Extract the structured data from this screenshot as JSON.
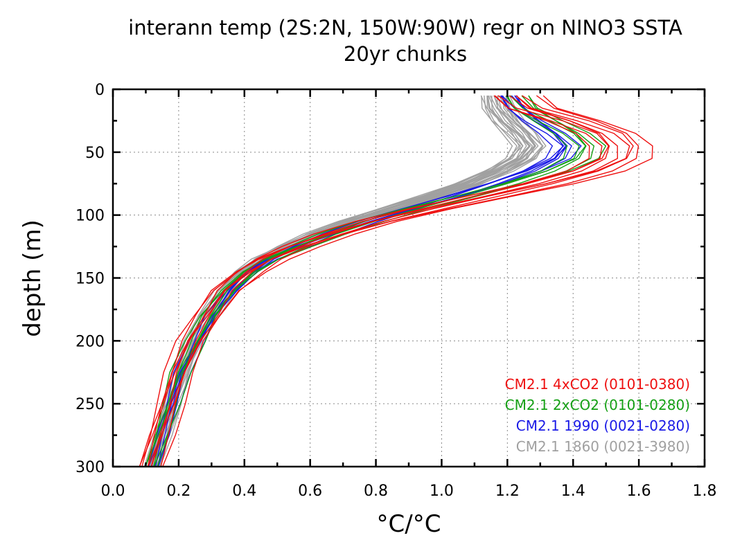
{
  "chart_data": {
    "type": "line",
    "title": "interann temp (2S:2N, 150W:90W) regr on NINO3 SSTA",
    "subtitle": "20yr chunks",
    "xlabel": "°C/°C",
    "ylabel": "depth (m)",
    "xlim": [
      0.0,
      1.8
    ],
    "ylim": [
      300,
      0
    ],
    "y_inverted": true,
    "grid": true,
    "xticks": [
      "0.0",
      "0.2",
      "0.4",
      "0.6",
      "0.8",
      "1.0",
      "1.2",
      "1.4",
      "1.6",
      "1.8"
    ],
    "yticks": [
      "0",
      "50",
      "100",
      "150",
      "200",
      "250",
      "300"
    ],
    "legend_position": "bottom-right",
    "depths": [
      5,
      15,
      25,
      35,
      45,
      55,
      65,
      75,
      85,
      95,
      105,
      115,
      125,
      135,
      145,
      160,
      180,
      200,
      225,
      250,
      275,
      300
    ],
    "groups": [
      {
        "legend": "CM2.1 1860 (0021-3980)",
        "color": "#a0a0a0",
        "profile": [
          1.16,
          1.17,
          1.2,
          1.24,
          1.27,
          1.24,
          1.17,
          1.08,
          0.97,
          0.85,
          0.73,
          0.62,
          0.53,
          0.45,
          0.4,
          0.34,
          0.29,
          0.25,
          0.21,
          0.18,
          0.15,
          0.12
        ],
        "offsets": [
          -0.05,
          -0.042,
          -0.034,
          -0.027,
          -0.02,
          -0.013,
          -0.006,
          0.0,
          0.006,
          0.013,
          0.02,
          0.027,
          0.034,
          0.042,
          0.05,
          -0.038,
          -0.016,
          0.009,
          0.031,
          0.044
        ]
      },
      {
        "legend": "CM2.1 1990 (0021-0280)",
        "color": "#1a1ae6",
        "profile": [
          1.2,
          1.23,
          1.28,
          1.34,
          1.38,
          1.35,
          1.27,
          1.16,
          1.04,
          0.91,
          0.78,
          0.67,
          0.57,
          0.48,
          0.42,
          0.36,
          0.3,
          0.26,
          0.21,
          0.18,
          0.15,
          0.12
        ],
        "offsets": [
          -0.035,
          -0.02,
          -0.006,
          0.008,
          0.022,
          0.035,
          -0.012,
          0.014
        ]
      },
      {
        "legend": "CM2.1 2xCO2 (0101-0280)",
        "color": "#15a015",
        "profile": [
          1.22,
          1.25,
          1.32,
          1.39,
          1.43,
          1.41,
          1.33,
          1.21,
          1.07,
          0.92,
          0.78,
          0.66,
          0.56,
          0.47,
          0.41,
          0.35,
          0.29,
          0.25,
          0.2,
          0.17,
          0.14,
          0.11
        ],
        "offsets": [
          -0.04,
          -0.02,
          0.0,
          0.02,
          0.04,
          0.06
        ]
      },
      {
        "legend": "CM2.1 4xCO2 (0101-0380)",
        "color": "#ee1010",
        "profile": [
          1.2,
          1.25,
          1.38,
          1.48,
          1.52,
          1.51,
          1.43,
          1.29,
          1.12,
          0.95,
          0.79,
          0.66,
          0.55,
          0.46,
          0.4,
          0.33,
          0.28,
          0.23,
          0.19,
          0.16,
          0.13,
          0.1
        ],
        "offsets": [
          -0.06,
          -0.04,
          -0.02,
          0.0,
          0.02,
          0.04,
          0.06,
          0.09,
          0.12
        ]
      }
    ]
  }
}
